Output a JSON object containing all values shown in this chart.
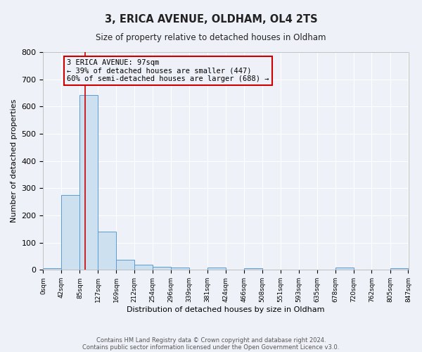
{
  "title": "3, ERICA AVENUE, OLDHAM, OL4 2TS",
  "subtitle": "Size of property relative to detached houses in Oldham",
  "xlabel": "Distribution of detached houses by size in Oldham",
  "ylabel": "Number of detached properties",
  "bin_edges": [
    0,
    42,
    85,
    127,
    169,
    212,
    254,
    296,
    339,
    381,
    424,
    466,
    508,
    551,
    593,
    635,
    678,
    720,
    762,
    805,
    847
  ],
  "bin_counts": [
    5,
    275,
    643,
    140,
    38,
    20,
    12,
    8,
    0,
    8,
    0,
    5,
    0,
    0,
    0,
    0,
    8,
    0,
    0,
    5
  ],
  "ylim": [
    0,
    800
  ],
  "yticks": [
    0,
    100,
    200,
    300,
    400,
    500,
    600,
    700,
    800
  ],
  "red_line_x": 97,
  "bar_facecolor": "#cce0f0",
  "bar_edgecolor": "#5b9bd5",
  "annotation_line1": "3 ERICA AVENUE: 97sqm",
  "annotation_line2": "← 39% of detached houses are smaller (447)",
  "annotation_line3": "60% of semi-detached houses are larger (688) →",
  "annotation_box_edgecolor": "#cc0000",
  "red_line_color": "#cc0000",
  "background_color": "#eef2f8",
  "footer_line1": "Contains HM Land Registry data © Crown copyright and database right 2024.",
  "footer_line2": "Contains public sector information licensed under the Open Government Licence v3.0.",
  "tick_labels": [
    "0sqm",
    "42sqm",
    "85sqm",
    "127sqm",
    "169sqm",
    "212sqm",
    "254sqm",
    "296sqm",
    "339sqm",
    "381sqm",
    "424sqm",
    "466sqm",
    "508sqm",
    "551sqm",
    "593sqm",
    "635sqm",
    "678sqm",
    "720sqm",
    "762sqm",
    "805sqm",
    "847sqm"
  ],
  "title_fontsize": 10.5,
  "subtitle_fontsize": 8.5,
  "xlabel_fontsize": 8,
  "ylabel_fontsize": 8,
  "ytick_fontsize": 8,
  "xtick_fontsize": 6.5,
  "annotation_fontsize": 7.5,
  "footer_fontsize": 6
}
